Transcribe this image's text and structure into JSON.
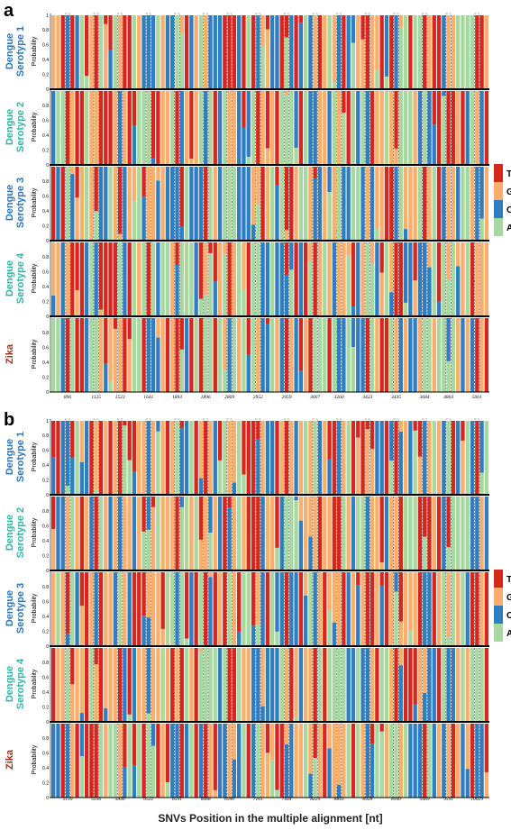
{
  "figure": {
    "panels": [
      "a",
      "b"
    ],
    "rows": [
      {
        "label_lines": [
          "Dengue",
          "Serotype 1"
        ],
        "color": "#2E75B6"
      },
      {
        "label_lines": [
          "Dengue",
          "Serotype 2"
        ],
        "color": "#2FB5A5"
      },
      {
        "label_lines": [
          "Dengue",
          "Serotype 3"
        ],
        "color": "#2E75B6"
      },
      {
        "label_lines": [
          "Dengue",
          "Serotype 4"
        ],
        "color": "#2FB5A5"
      },
      {
        "label_lines": [
          "Zika"
        ],
        "color": "#A0301F"
      }
    ],
    "y_axis_label": "Probability",
    "y_ticks": [
      "0",
      "0.2",
      "0.4",
      "0.6",
      "0.8",
      "1"
    ],
    "x_axis_title": "SNVs Position in the multiple alignment [nt]",
    "legend": [
      {
        "label": "T",
        "color": "#D7261E"
      },
      {
        "label": "G",
        "color": "#F9AE6B"
      },
      {
        "label": "C",
        "color": "#2E7EC1"
      },
      {
        "label": "A",
        "color": "#A6D8A0"
      }
    ]
  },
  "chart_data": [
    {
      "type": "bar",
      "panel": "a",
      "stacked": true,
      "xlabel": "",
      "ylabel": "Probability",
      "ylim": [
        0,
        1
      ],
      "x_tick_labels": [
        "896",
        "1125",
        "1523",
        "1641",
        "1893",
        "1896",
        "2809",
        "2952",
        "2959",
        "3007",
        "3260",
        "3423",
        "3435",
        "3684",
        "4803",
        "5061"
      ],
      "highlighted_positions": [
        "896",
        "1125",
        "1523",
        "1641",
        "1893",
        "1896",
        "2809",
        "2952",
        "2959",
        "3007",
        "3260",
        "3423",
        "3435",
        "3684",
        "4803",
        "5061"
      ],
      "nucleotides": [
        "T",
        "G",
        "C",
        "A"
      ],
      "rows": [
        "Dengue Serotype 1",
        "Dengue Serotype 2",
        "Dengue Serotype 3",
        "Dengue Serotype 4",
        "Zika"
      ],
      "dominant_nucleotide": [
        [
          "C",
          "T",
          "G",
          "C",
          "A",
          "G",
          "T",
          "C",
          "A",
          "G",
          "C",
          "T",
          "C",
          "T",
          "G",
          "T"
        ],
        [
          "T",
          "G",
          "C",
          "A",
          "T",
          "C",
          "G",
          "T",
          "A",
          "C",
          "G",
          "C",
          "T",
          "A",
          "T",
          "G"
        ],
        [
          "A",
          "T",
          "T",
          "G",
          "C",
          "T",
          "A",
          "G",
          "T",
          "C",
          "A",
          "G",
          "C",
          "T",
          "G",
          "C"
        ],
        [
          "G",
          "C",
          "A",
          "T",
          "C",
          "G",
          "T",
          "A",
          "C",
          "T",
          "G",
          "A",
          "T",
          "C",
          "A",
          "G"
        ],
        [
          "T",
          "A",
          "G",
          "C",
          "T",
          "A",
          "C",
          "G",
          "T",
          "A",
          "C",
          "T",
          "G",
          "A",
          "C",
          "T"
        ]
      ]
    },
    {
      "type": "bar",
      "panel": "b",
      "stacked": true,
      "xlabel": "SNVs Position in the multiple alignment [nt]",
      "ylabel": "Probability",
      "ylim": [
        0,
        1
      ],
      "x_tick_labels": [
        "5139",
        "5556",
        "5846",
        "6522",
        "6591",
        "6668",
        "6990",
        "7161",
        "7444",
        "8229",
        "8843",
        "8928",
        "8940",
        "9489",
        "9591",
        "10029"
      ],
      "highlighted_positions": [
        "5139",
        "5556",
        "5846",
        "6522",
        "6591",
        "6668",
        "6990",
        "7161",
        "7444",
        "8229",
        "8843",
        "8928",
        "8940",
        "9489",
        "9591",
        "10029"
      ],
      "nucleotides": [
        "T",
        "G",
        "C",
        "A"
      ],
      "rows": [
        "Dengue Serotype 1",
        "Dengue Serotype 2",
        "Dengue Serotype 3",
        "Dengue Serotype 4",
        "Zika"
      ],
      "dominant_nucleotide": [
        [
          "C",
          "G",
          "T",
          "C",
          "A",
          "T",
          "G",
          "C",
          "T",
          "A",
          "C",
          "G",
          "T",
          "C",
          "A",
          "T"
        ],
        [
          "G",
          "T",
          "C",
          "A",
          "T",
          "G",
          "C",
          "T",
          "A",
          "G",
          "T",
          "C",
          "G",
          "A",
          "T",
          "C"
        ],
        [
          "T",
          "C",
          "A",
          "G",
          "C",
          "T",
          "A",
          "G",
          "T",
          "C",
          "G",
          "T",
          "A",
          "C",
          "G",
          "T"
        ],
        [
          "A",
          "G",
          "T",
          "C",
          "G",
          "A",
          "T",
          "C",
          "G",
          "T",
          "A",
          "C",
          "T",
          "G",
          "C",
          "A"
        ],
        [
          "C",
          "T",
          "G",
          "A",
          "C",
          "T",
          "G",
          "A",
          "C",
          "T",
          "G",
          "C",
          "A",
          "T",
          "G",
          "C"
        ]
      ]
    }
  ]
}
